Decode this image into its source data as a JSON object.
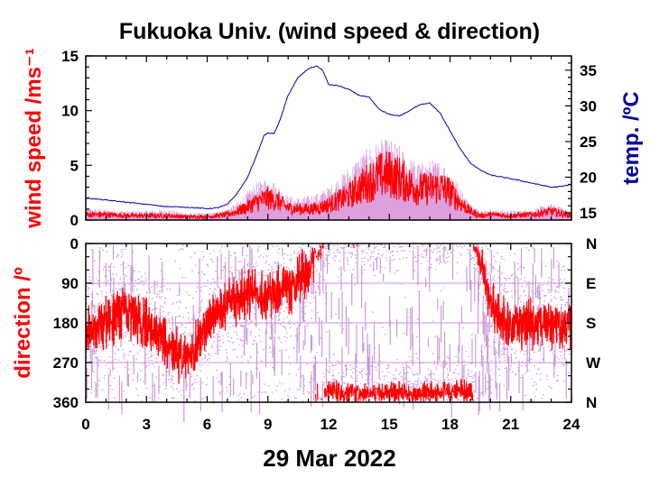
{
  "chart_data": [
    {
      "type": "line",
      "title": "Fukuoka Univ. (wind speed & direction)",
      "ylabel": "wind speed /ms⁻¹",
      "y2label": "temp. /ºC",
      "ylim": [
        0,
        15
      ],
      "y2lim": [
        14,
        37
      ],
      "xlim": [
        0,
        24
      ],
      "yticks": [
        0,
        5,
        10,
        15
      ],
      "y2ticks": [
        15,
        20,
        25,
        30,
        35
      ],
      "colors": {
        "wind_mean": "#ff0000",
        "wind_gust": "#dda0dd",
        "temp": "#0000aa"
      },
      "series": [
        {
          "key": "wind_mean",
          "x": [
            0,
            1,
            2,
            3,
            4,
            5,
            6,
            6.5,
            7,
            7.5,
            8,
            8.5,
            9,
            9.5,
            10,
            10.5,
            11,
            11.5,
            12,
            12.5,
            13,
            13.5,
            14,
            14.5,
            15,
            15.5,
            16,
            16.5,
            17,
            17.5,
            18,
            18.5,
            19,
            19.5,
            20,
            21,
            22,
            23,
            24
          ],
          "values": [
            0.5,
            0.5,
            0.4,
            0.4,
            0.4,
            0.3,
            0.3,
            0.4,
            0.5,
            0.8,
            1.2,
            1.7,
            2.0,
            1.7,
            1.1,
            1.0,
            1.0,
            1.1,
            1.4,
            1.8,
            2.2,
            2.9,
            3.5,
            4.0,
            4.2,
            3.8,
            3.2,
            2.8,
            2.9,
            3.0,
            2.6,
            1.6,
            0.8,
            0.4,
            0.5,
            0.4,
            0.5,
            0.8,
            0.4
          ]
        },
        {
          "key": "wind_gust",
          "x": [
            0,
            1,
            2,
            3,
            4,
            5,
            6,
            6.5,
            7,
            7.5,
            8,
            8.5,
            9,
            9.5,
            10,
            10.5,
            11,
            11.5,
            12,
            12.5,
            13,
            13.5,
            14,
            14.5,
            15,
            15.5,
            16,
            16.5,
            17,
            17.5,
            18,
            18.5,
            19,
            19.5,
            20,
            21,
            22,
            23,
            24
          ],
          "values": [
            1.0,
            0.9,
            0.8,
            0.8,
            0.9,
            0.6,
            0.6,
            0.7,
            1.0,
            1.5,
            2.4,
            3.2,
            3.6,
            3.0,
            2.0,
            1.9,
            2.0,
            2.3,
            2.8,
            3.6,
            4.4,
            5.4,
            6.1,
            6.6,
            6.8,
            6.2,
            5.3,
            4.8,
            5.0,
            5.0,
            4.3,
            2.7,
            1.4,
            0.8,
            0.9,
            0.8,
            0.9,
            1.4,
            0.8
          ]
        },
        {
          "key": "temp",
          "x": [
            0,
            1,
            2,
            3,
            4,
            5,
            6,
            6.5,
            7,
            7.5,
            8,
            8.5,
            8.8,
            9,
            9.3,
            9.6,
            10,
            10.5,
            11,
            11.4,
            11.7,
            12,
            12.5,
            13,
            13.5,
            14,
            14.5,
            15,
            15.5,
            16,
            16.5,
            17,
            17.5,
            18,
            18.5,
            19,
            19.5,
            20,
            21,
            22,
            23,
            23.5,
            24
          ],
          "values": [
            17.1,
            16.8,
            16.5,
            16.2,
            15.9,
            15.8,
            15.6,
            15.7,
            16.2,
            17.8,
            20.0,
            23.5,
            25.8,
            26.2,
            26.1,
            28.0,
            31.5,
            34.0,
            35.2,
            35.6,
            35.0,
            33.0,
            32.8,
            32.3,
            31.5,
            31.2,
            29.5,
            28.8,
            28.6,
            29.3,
            30.2,
            30.4,
            29.0,
            26.5,
            24.0,
            22.0,
            21.0,
            20.3,
            19.8,
            19.2,
            18.6,
            18.7,
            19.0
          ]
        }
      ]
    },
    {
      "type": "scatter",
      "ylabel": "direction /º",
      "xlabel": "29 Mar 2022",
      "ylim": [
        360,
        0
      ],
      "xlim": [
        0,
        24
      ],
      "xticks": [
        0,
        3,
        6,
        9,
        12,
        15,
        18,
        21,
        24
      ],
      "yticks": [
        0,
        90,
        180,
        270,
        360
      ],
      "y2ticks": [
        "N",
        "E",
        "S",
        "W",
        "N"
      ],
      "colors": {
        "direction_mean": "#ff0000",
        "direction_samples": "#cc99dd"
      },
      "series": [
        {
          "key": "direction_mean",
          "x": [
            0,
            1,
            2,
            3,
            4,
            5,
            6,
            7,
            8,
            9,
            10,
            11,
            12,
            13,
            14,
            15,
            16,
            17,
            18,
            19,
            20,
            21,
            22,
            23,
            24
          ],
          "values": [
            200,
            180,
            150,
            180,
            230,
            270,
            180,
            140,
            110,
            120,
            100,
            60,
            330,
            345,
            345,
            340,
            345,
            340,
            340,
            330,
            130,
            200,
            180,
            190,
            180
          ]
        }
      ]
    }
  ]
}
